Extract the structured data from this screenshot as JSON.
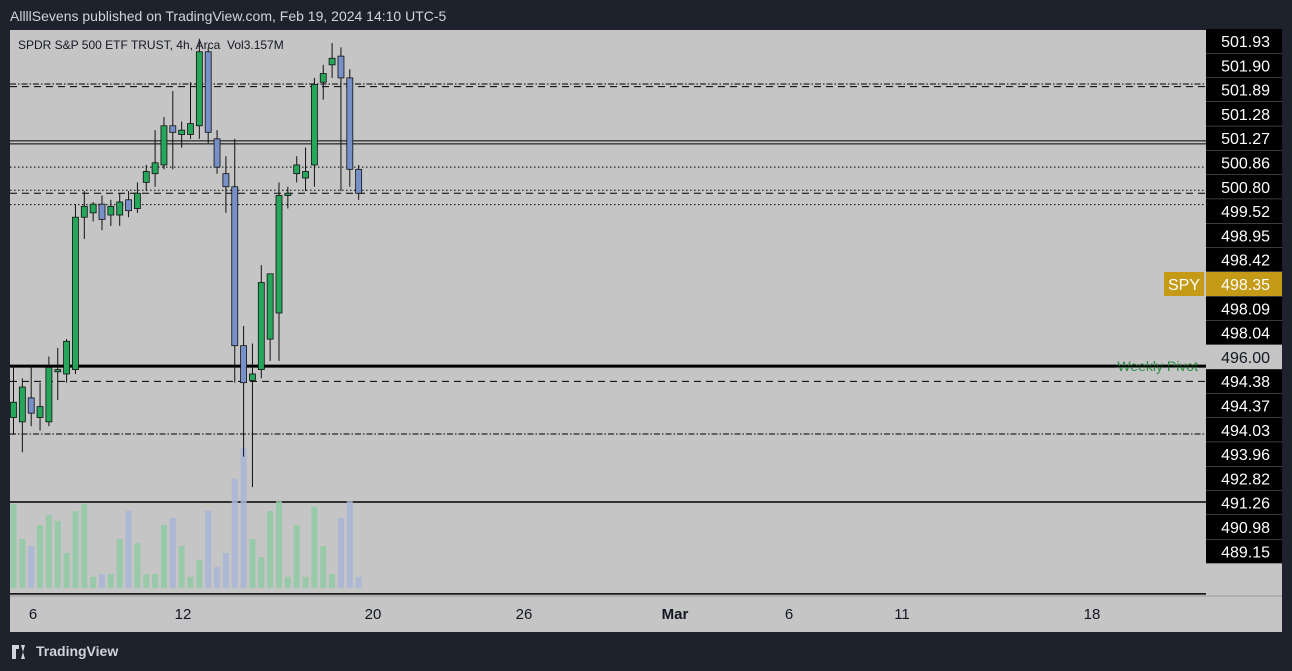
{
  "header": {
    "published": "AllllSevens published on TradingView.com, Feb 19, 2024 14:10 UTC-5"
  },
  "legend": {
    "symbol": "SPDR S&P 500 ETF TRUST",
    "interval": "4h",
    "exchange": "Arca",
    "volume": "Vol3.157M"
  },
  "footer": {
    "brand": "TradingView"
  },
  "colors": {
    "up": "#26a65b",
    "down": "#7890c8",
    "pane_bg": "#c5c5c5",
    "page_bg": "#1e222d",
    "last_price": "#c49a16",
    "pivot_label": "#2f8f46"
  },
  "chart_data": {
    "type": "candlestick",
    "symbol_tag": "SPY",
    "last_price": "498.35",
    "ylim": [
      489.1,
      502.1
    ],
    "x_ticks": [
      "6",
      "12",
      "20",
      "26",
      "Mar",
      "6",
      "11",
      "18"
    ],
    "price_levels": [
      {
        "label": "501.93",
        "style": "box"
      },
      {
        "label": "501.90",
        "style": "box"
      },
      {
        "label": "501.89",
        "style": "box"
      },
      {
        "label": "501.28",
        "style": "box"
      },
      {
        "label": "501.27",
        "style": "box"
      },
      {
        "label": "500.86",
        "style": "box",
        "line": "dashdot"
      },
      {
        "label": "500.80",
        "style": "box",
        "line": "dashed"
      },
      {
        "label": "499.52",
        "style": "box",
        "line": "double"
      },
      {
        "label": "498.95",
        "style": "box",
        "line": "dotted"
      },
      {
        "label": "498.42",
        "style": "box",
        "line": "dotted"
      },
      {
        "label": "498.35",
        "style": "last",
        "line": "dashed"
      },
      {
        "label": "498.09",
        "style": "box",
        "line": "dotted"
      },
      {
        "label": "498.04",
        "style": "box"
      },
      {
        "label": "496.00",
        "style": "plain"
      },
      {
        "label": "494.38",
        "style": "box",
        "line": "thick",
        "name": "Weekly Pivot"
      },
      {
        "label": "494.37",
        "style": "box",
        "line": "solid"
      },
      {
        "label": "494.03",
        "style": "box",
        "line": "dashed"
      },
      {
        "label": "493.96",
        "style": "box"
      },
      {
        "label": "492.82",
        "style": "box",
        "line": "dashdot"
      },
      {
        "label": "491.26",
        "style": "box",
        "line": "solid"
      },
      {
        "label": "490.98",
        "style": "box"
      },
      {
        "label": "489.15",
        "style": "box",
        "line": "solid"
      }
    ],
    "candles": [
      {
        "o": 493.2,
        "h": 494.4,
        "l": 492.8,
        "c": 493.55
      },
      {
        "o": 493.1,
        "h": 494.1,
        "l": 492.4,
        "c": 493.9
      },
      {
        "o": 493.65,
        "h": 494.4,
        "l": 493.0,
        "c": 493.3
      },
      {
        "o": 493.2,
        "h": 494.0,
        "l": 492.9,
        "c": 493.45
      },
      {
        "o": 493.1,
        "h": 494.6,
        "l": 493.0,
        "c": 494.35
      },
      {
        "o": 494.25,
        "h": 494.8,
        "l": 493.6,
        "c": 494.3
      },
      {
        "o": 494.2,
        "h": 495.0,
        "l": 494.0,
        "c": 494.95
      },
      {
        "o": 494.3,
        "h": 498.1,
        "l": 494.2,
        "c": 497.8
      },
      {
        "o": 497.8,
        "h": 498.4,
        "l": 497.3,
        "c": 498.05
      },
      {
        "o": 497.9,
        "h": 498.15,
        "l": 497.7,
        "c": 498.1
      },
      {
        "o": 498.1,
        "h": 498.3,
        "l": 497.5,
        "c": 497.75
      },
      {
        "o": 497.85,
        "h": 498.2,
        "l": 497.6,
        "c": 498.05
      },
      {
        "o": 497.85,
        "h": 498.35,
        "l": 497.6,
        "c": 498.15
      },
      {
        "o": 498.2,
        "h": 498.4,
        "l": 497.8,
        "c": 497.95
      },
      {
        "o": 498.0,
        "h": 498.6,
        "l": 497.9,
        "c": 498.35
      },
      {
        "o": 498.6,
        "h": 499.0,
        "l": 498.4,
        "c": 498.85
      },
      {
        "o": 498.8,
        "h": 499.8,
        "l": 498.5,
        "c": 499.05
      },
      {
        "o": 499.0,
        "h": 500.1,
        "l": 498.9,
        "c": 499.9
      },
      {
        "o": 499.9,
        "h": 500.7,
        "l": 498.9,
        "c": 499.75
      },
      {
        "o": 499.7,
        "h": 500.0,
        "l": 499.4,
        "c": 499.8
      },
      {
        "o": 499.7,
        "h": 500.9,
        "l": 499.6,
        "c": 499.95
      },
      {
        "o": 499.9,
        "h": 501.9,
        "l": 499.6,
        "c": 501.6
      },
      {
        "o": 501.6,
        "h": 501.7,
        "l": 499.5,
        "c": 499.75
      },
      {
        "o": 499.6,
        "h": 499.8,
        "l": 498.8,
        "c": 498.95
      },
      {
        "o": 498.8,
        "h": 499.2,
        "l": 497.9,
        "c": 498.5
      },
      {
        "o": 498.5,
        "h": 499.6,
        "l": 494.0,
        "c": 494.85
      },
      {
        "o": 494.85,
        "h": 495.3,
        "l": 492.3,
        "c": 494.0
      },
      {
        "o": 494.05,
        "h": 494.9,
        "l": 491.6,
        "c": 494.2
      },
      {
        "o": 494.3,
        "h": 496.7,
        "l": 494.1,
        "c": 496.3
      },
      {
        "o": 495.0,
        "h": 496.4,
        "l": 494.5,
        "c": 496.5
      },
      {
        "o": 495.6,
        "h": 498.6,
        "l": 494.5,
        "c": 498.3
      },
      {
        "o": 498.3,
        "h": 498.5,
        "l": 498.0,
        "c": 498.35
      },
      {
        "o": 498.8,
        "h": 499.2,
        "l": 498.6,
        "c": 499.0
      },
      {
        "o": 498.7,
        "h": 499.4,
        "l": 498.4,
        "c": 498.85
      },
      {
        "o": 499.0,
        "h": 501.0,
        "l": 498.5,
        "c": 500.85
      },
      {
        "o": 500.9,
        "h": 501.3,
        "l": 500.5,
        "c": 501.1
      },
      {
        "o": 501.3,
        "h": 501.8,
        "l": 501.0,
        "c": 501.45
      },
      {
        "o": 501.5,
        "h": 501.7,
        "l": 498.4,
        "c": 501.0
      },
      {
        "o": 501.0,
        "h": 501.2,
        "l": 498.5,
        "c": 498.9
      },
      {
        "o": 498.9,
        "h": 499.0,
        "l": 498.2,
        "c": 498.35
      }
    ],
    "volume": [
      0.6,
      0.35,
      0.3,
      0.45,
      0.52,
      0.48,
      0.25,
      0.55,
      0.6,
      0.08,
      0.1,
      0.1,
      0.35,
      0.55,
      0.32,
      0.1,
      0.1,
      0.45,
      0.5,
      0.3,
      0.08,
      0.2,
      0.55,
      0.15,
      0.25,
      0.78,
      1.0,
      0.35,
      0.22,
      0.55,
      0.62,
      0.08,
      0.45,
      0.08,
      0.58,
      0.3,
      0.1,
      0.5,
      0.62,
      0.08
    ]
  }
}
